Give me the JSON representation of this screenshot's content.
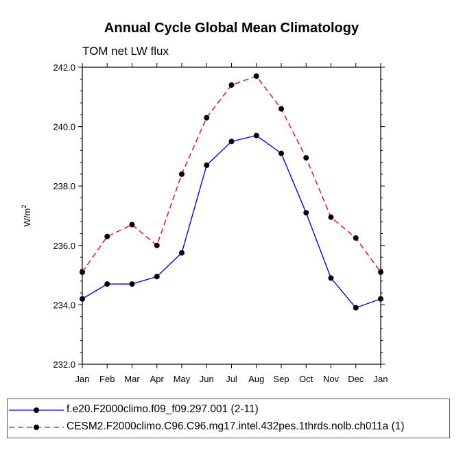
{
  "chart_data": {
    "type": "line",
    "title": "Annual Cycle Global Mean Climatology",
    "subtitle": "TOM net LW flux",
    "ylabel": "W/m",
    "ylabel_sup": "2",
    "categories": [
      "Jan",
      "Feb",
      "Mar",
      "Apr",
      "May",
      "Jun",
      "Jul",
      "Aug",
      "Sep",
      "Oct",
      "Nov",
      "Dec",
      "Jan"
    ],
    "ylim": [
      232.0,
      242.0
    ],
    "yticks": [
      "232.0",
      "234.0",
      "236.0",
      "238.0",
      "240.0",
      "242.0"
    ],
    "series": [
      {
        "name": "f.e20.F2000climo.f09_f09.297.001 (2-11)",
        "color": "#0000ff",
        "dash": "solid",
        "values": [
          234.2,
          234.7,
          234.7,
          234.95,
          235.75,
          238.7,
          239.5,
          239.7,
          239.1,
          237.1,
          234.9,
          233.9,
          234.2
        ]
      },
      {
        "name": "CESM2.F2000climo.C96.C96.mg17.intel.432pes.1thrds.nolb.ch011a (1)",
        "color": "#ff0000",
        "dash": "dashed",
        "values": [
          235.1,
          236.3,
          236.7,
          236.0,
          238.4,
          240.3,
          241.4,
          241.7,
          240.6,
          238.95,
          236.95,
          236.25,
          235.1
        ]
      }
    ]
  }
}
